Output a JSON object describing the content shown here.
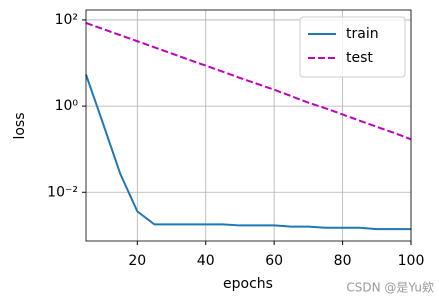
{
  "chart_data": {
    "type": "line",
    "xlabel": "epochs",
    "ylabel": "loss",
    "x": [
      5,
      10,
      15,
      20,
      25,
      30,
      35,
      40,
      45,
      50,
      55,
      60,
      65,
      70,
      75,
      80,
      85,
      90,
      95,
      100
    ],
    "series": [
      {
        "name": "train",
        "color": "#1f77b4",
        "dash": false,
        "values": [
          5.4,
          0.39,
          0.027,
          0.0036,
          0.0018,
          0.0018,
          0.0018,
          0.0018,
          0.0018,
          0.0017,
          0.0017,
          0.0017,
          0.0016,
          0.0016,
          0.0015,
          0.0015,
          0.0015,
          0.0014,
          0.0014,
          0.0014
        ]
      },
      {
        "name": "test",
        "color": "#bf00bf",
        "dash": true,
        "values": [
          85.1,
          61.4,
          44.4,
          32.0,
          23.1,
          16.7,
          12.0,
          8.7,
          6.3,
          4.5,
          3.3,
          2.4,
          1.7,
          1.2,
          0.89,
          0.64,
          0.46,
          0.33,
          0.24,
          0.17
        ]
      }
    ],
    "xlim": [
      5,
      100
    ],
    "xticks": [
      20,
      40,
      60,
      80,
      100
    ],
    "ylim": [
      0.00074,
      170
    ],
    "ylog": true,
    "yticks": [
      {
        "value": 0.01,
        "label": "10⁻²"
      },
      {
        "value": 1,
        "label": "10⁰"
      },
      {
        "value": 100,
        "label": "10²"
      }
    ],
    "grid": true,
    "legend": "upper right",
    "watermark": "CSDN @是Yu欸"
  }
}
